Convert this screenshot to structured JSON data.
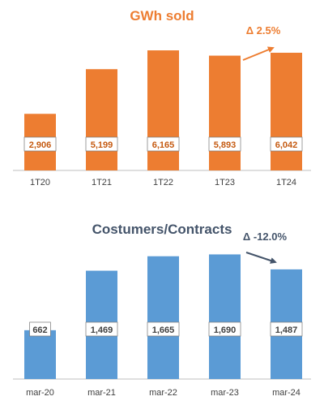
{
  "chart_data": [
    {
      "type": "bar",
      "title": "GWh sold",
      "categories": [
        "1T20",
        "1T21",
        "1T22",
        "1T23",
        "1T24"
      ],
      "values": [
        2906,
        5199,
        6165,
        5893,
        6042
      ],
      "value_labels": [
        "2,906",
        "5,199",
        "6,165",
        "5,893",
        "6,042"
      ],
      "ylim": [
        0,
        6500
      ],
      "grid": false,
      "color": "#ED7D31",
      "annotation": "Δ 2.5%",
      "annotation_color": "#ED7D31"
    },
    {
      "type": "bar",
      "title": "Costumers/Contracts",
      "categories": [
        "mar-20",
        "mar-21",
        "mar-22",
        "mar-23",
        "mar-24"
      ],
      "values": [
        662,
        1469,
        1665,
        1690,
        1487
      ],
      "value_labels": [
        "662",
        "1,469",
        "1,665",
        "1,690",
        "1,487"
      ],
      "ylim": [
        0,
        1750
      ],
      "grid": false,
      "color": "#5B9BD5",
      "annotation": "Δ -12.0%",
      "annotation_color": "#44546A"
    }
  ]
}
